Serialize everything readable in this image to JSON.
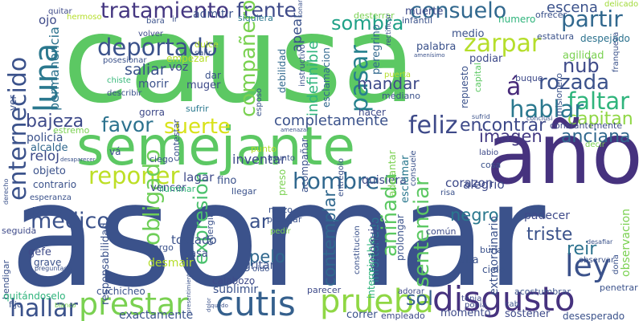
{
  "words": [
    {
      "text": "causa",
      "color": "#5cc863"
    },
    {
      "text": "asomar",
      "color": "#3b528b"
    },
    {
      "text": "semejante",
      "color": "#5cc863"
    },
    {
      "text": "año",
      "color": "#46327e"
    },
    {
      "text": "prestar",
      "color": "#7ad151"
    },
    {
      "text": "cutis",
      "color": "#35608d"
    },
    {
      "text": "prueba",
      "color": "#8fd744"
    },
    {
      "text": "disgusto",
      "color": "#46327e"
    },
    {
      "text": "enternecido",
      "color": "#3b528b"
    },
    {
      "text": "tratamiento",
      "color": "#453781"
    },
    {
      "text": "frente",
      "color": "#3e4a89"
    },
    {
      "text": "sombra",
      "color": "#1fa187"
    },
    {
      "text": "consuelo",
      "color": "#31688e"
    },
    {
      "text": "escena",
      "color": "#3b528b"
    },
    {
      "text": "partir",
      "color": "#31688e"
    },
    {
      "text": "deportado",
      "color": "#3b528b"
    },
    {
      "text": "zarpar",
      "color": "#b5de2b"
    },
    {
      "text": "luna",
      "color": "#2a788e"
    },
    {
      "text": "pasar",
      "color": "#26818e"
    },
    {
      "text": "compañero",
      "color": "#7ad151"
    },
    {
      "text": "rozada",
      "color": "#3b528b"
    },
    {
      "text": "faltar",
      "color": "#2fb47c"
    },
    {
      "text": "á",
      "color": "#472a7a"
    },
    {
      "text": "capitan",
      "color": "#8fd744"
    },
    {
      "text": "hablar",
      "color": "#2a788e"
    },
    {
      "text": "nub",
      "color": "#3e4a89"
    },
    {
      "text": "ley",
      "color": "#3b528b"
    },
    {
      "text": "anciana",
      "color": "#31688e"
    },
    {
      "text": "feliz",
      "color": "#3e4a89"
    },
    {
      "text": "encontrar",
      "color": "#3e4a89"
    },
    {
      "text": "imagen",
      "color": "#443983"
    },
    {
      "text": "favor",
      "color": "#2c728e"
    },
    {
      "text": "suerte",
      "color": "#d8e219"
    },
    {
      "text": "reponer",
      "color": "#bddf26"
    },
    {
      "text": "hombre",
      "color": "#31688e"
    },
    {
      "text": "ar",
      "color": "#3b528b"
    },
    {
      "text": "expresion",
      "color": "#4ac16d"
    },
    {
      "text": "obligado",
      "color": "#6ece58"
    },
    {
      "text": "hallar",
      "color": "#3b528b"
    },
    {
      "text": "sentenciar",
      "color": "#5cc863"
    },
    {
      "text": "contemplar",
      "color": "#31688e"
    },
    {
      "text": "negro",
      "color": "#2a788e"
    },
    {
      "text": "triste",
      "color": "#3b528b"
    },
    {
      "text": "reir",
      "color": "#2c728e"
    },
    {
      "text": "sol",
      "color": "#35608d"
    },
    {
      "text": "médico",
      "color": "#3b528b"
    },
    {
      "text": "pelo",
      "color": "#31688e"
    },
    {
      "text": "aniñada",
      "color": "#5cc863"
    },
    {
      "text": "mandar",
      "color": "#3e4a89"
    },
    {
      "text": "saliar",
      "color": "#3b528b"
    },
    {
      "text": "bajeza",
      "color": "#3e4a89"
    },
    {
      "text": "completamente",
      "color": "#3b528b"
    },
    {
      "text": "entenecido",
      "color": "#31688e"
    },
    {
      "text": "permanencia",
      "color": "#2c728e"
    },
    {
      "text": "indefinible",
      "color": "#2fb47c"
    },
    {
      "text": "apear",
      "color": "#3b528b"
    },
    {
      "text": "ojo",
      "color": "#3e4a89"
    },
    {
      "text": "quitar",
      "color": "#3e4a89"
    },
    {
      "text": "admitir",
      "color": "#3b528b"
    },
    {
      "text": "siquiera",
      "color": "#2a788e"
    },
    {
      "text": "infantil",
      "color": "#3b528b"
    },
    {
      "text": "muerte",
      "color": "#3e4a89"
    },
    {
      "text": "desterrar",
      "color": "#7ad151"
    },
    {
      "text": "delicado",
      "color": "#a0da39"
    },
    {
      "text": "ofrecer",
      "color": "#3b528b"
    },
    {
      "text": "numero",
      "color": "#2fb47c"
    },
    {
      "text": "despejado",
      "color": "#2c728e"
    },
    {
      "text": "estatura",
      "color": "#3b528b"
    },
    {
      "text": "agilidad",
      "color": "#7ad151"
    },
    {
      "text": "medio",
      "color": "#3b528b"
    },
    {
      "text": "palabra",
      "color": "#3b528b"
    },
    {
      "text": "podiar",
      "color": "#3e4a89"
    },
    {
      "text": "peregrino",
      "color": "#31688e"
    },
    {
      "text": "instructivo",
      "color": "#3b528b"
    },
    {
      "text": "esclamacion",
      "color": "#31688e"
    },
    {
      "text": "volver",
      "color": "#3e4a89"
    },
    {
      "text": "empezar",
      "color": "#b5de2b"
    },
    {
      "text": "salir",
      "color": "#3b528b"
    },
    {
      "text": "dulce",
      "color": "#b5de2b"
    },
    {
      "text": "voz",
      "color": "#3e4a89"
    },
    {
      "text": "posesionar",
      "color": "#3b528b"
    },
    {
      "text": "chiste",
      "color": "#35b779"
    },
    {
      "text": "morir",
      "color": "#3b528b"
    },
    {
      "text": "muger",
      "color": "#3e4a89"
    },
    {
      "text": "dar",
      "color": "#3b528b"
    },
    {
      "text": "debilidad",
      "color": "#31688e"
    },
    {
      "text": "repuesto",
      "color": "#3b528b"
    },
    {
      "text": "puerta",
      "color": "#b5de2b"
    },
    {
      "text": "mediano",
      "color": "#3b528b"
    },
    {
      "text": "capital",
      "color": "#5cc863"
    },
    {
      "text": "sufrir",
      "color": "#2a788e"
    },
    {
      "text": "hacer",
      "color": "#3e4a89"
    },
    {
      "text": "lagar",
      "color": "#3e4a89"
    },
    {
      "text": "fino",
      "color": "#3b528b"
    },
    {
      "text": "inventar",
      "color": "#3e4a89"
    },
    {
      "text": "quisiera",
      "color": "#3e4a89"
    },
    {
      "text": "corazon",
      "color": "#3e4a89"
    },
    {
      "text": "alegrio",
      "color": "#3e4a89"
    },
    {
      "text": "esclamar",
      "color": "#2a788e"
    },
    {
      "text": "infortunado",
      "color": "#2a788e"
    },
    {
      "text": "interminable",
      "color": "#2fb47c"
    },
    {
      "text": "extraordinario",
      "color": "#3b528b"
    },
    {
      "text": "padecer",
      "color": "#3e4a89"
    },
    {
      "text": "observacion",
      "color": "#7ad151"
    },
    {
      "text": "burla",
      "color": "#3b528b"
    },
    {
      "text": "alta",
      "color": "#3b528b"
    },
    {
      "text": "cielo",
      "color": "#3b528b"
    },
    {
      "text": "tenia",
      "color": "#3e4a89"
    },
    {
      "text": "ponia",
      "color": "#3e4a89"
    },
    {
      "text": "momento",
      "color": "#3e4a89"
    },
    {
      "text": "sostener",
      "color": "#3e4a89"
    },
    {
      "text": "desesperado",
      "color": "#3b528b"
    },
    {
      "text": "acostumbrar",
      "color": "#3b528b"
    },
    {
      "text": "exactamente",
      "color": "#3b528b"
    },
    {
      "text": "correr",
      "color": "#3b528b"
    },
    {
      "text": "empleado",
      "color": "#3e4a89"
    },
    {
      "text": "parecer",
      "color": "#3e4a89"
    },
    {
      "text": "adorar",
      "color": "#3e4a89"
    },
    {
      "text": "sublimir",
      "color": "#3b528b"
    },
    {
      "text": "gritar",
      "color": "#3b528b"
    },
    {
      "text": "calabozo",
      "color": "#3e4a89"
    },
    {
      "text": "cuchicheo",
      "color": "#3b528b"
    },
    {
      "text": "responsabilidad",
      "color": "#3b528b"
    },
    {
      "text": "gefe",
      "color": "#3e4a89"
    },
    {
      "text": "grave",
      "color": "#3b528b"
    },
    {
      "text": "bendigar",
      "color": "#3b528b"
    },
    {
      "text": "quitándoselo",
      "color": "#2fb47c"
    },
    {
      "text": "fijo",
      "color": "#3b528b"
    },
    {
      "text": "policía",
      "color": "#3b528b"
    },
    {
      "text": "alcalde",
      "color": "#31688e"
    },
    {
      "text": "reloj",
      "color": "#3e4a89"
    },
    {
      "text": "objeto",
      "color": "#3b528b"
    },
    {
      "text": "contrario",
      "color": "#3b528b"
    },
    {
      "text": "esperanza",
      "color": "#3b528b"
    },
    {
      "text": "jóven",
      "color": "#3b528b"
    },
    {
      "text": "seguida",
      "color": "#3e4a89"
    },
    {
      "text": "tostado",
      "color": "#3b528b"
    },
    {
      "text": "casa",
      "color": "#3b528b"
    },
    {
      "text": "cargo",
      "color": "#3b528b"
    },
    {
      "text": "desmair",
      "color": "#b5de2b"
    },
    {
      "text": "vencer",
      "color": "#3e4a89"
    },
    {
      "text": "iluminar",
      "color": "#35b779"
    },
    {
      "text": "llegar",
      "color": "#3b528b"
    },
    {
      "text": "mozo",
      "color": "#3b528b"
    },
    {
      "text": "protejar",
      "color": "#3b528b"
    },
    {
      "text": "energia",
      "color": "#3b528b"
    },
    {
      "text": "pedir",
      "color": "#7ad151"
    },
    {
      "text": "oido",
      "color": "#3b528b"
    },
    {
      "text": "coloquio",
      "color": "#3e4a89"
    },
    {
      "text": "constitucion",
      "color": "#3b528b"
    },
    {
      "text": "prolongar",
      "color": "#3b528b"
    },
    {
      "text": "común",
      "color": "#3e4a89"
    },
    {
      "text": "risa",
      "color": "#3b528b"
    },
    {
      "text": "adelantar",
      "color": "#7ad151"
    },
    {
      "text": "entregolo",
      "color": "#3b528b"
    },
    {
      "text": "consuele",
      "color": "#3b528b"
    },
    {
      "text": "labio",
      "color": "#3e4a89"
    },
    {
      "text": "cosa",
      "color": "#3b528b"
    },
    {
      "text": "constantemente",
      "color": "#3e4a89"
    },
    {
      "text": "contestar",
      "color": "#3b528b"
    },
    {
      "text": "punto",
      "color": "#b5de2b"
    },
    {
      "text": "asunto",
      "color": "#3b528b"
    },
    {
      "text": "estremo",
      "color": "#7ad151"
    },
    {
      "text": "ciego",
      "color": "#3b528b"
    },
    {
      "text": "gorra",
      "color": "#3e4a89"
    },
    {
      "text": "describir",
      "color": "#3b528b"
    },
    {
      "text": "ir",
      "color": "#3b528b"
    },
    {
      "text": "bara",
      "color": "#3b528b"
    },
    {
      "text": "hermoso",
      "color": "#b5de2b"
    },
    {
      "text": "franqueza",
      "color": "#3b528b"
    },
    {
      "text": "misionero",
      "color": "#3b528b"
    },
    {
      "text": "buque",
      "color": "#3e4a89"
    },
    {
      "text": "penetrar",
      "color": "#3b528b"
    },
    {
      "text": "observar",
      "color": "#3b528b"
    },
    {
      "text": "desafiar",
      "color": "#3b528b"
    },
    {
      "text": "dona",
      "color": "#3b528b"
    },
    {
      "text": "derecho",
      "color": "#3b528b"
    },
    {
      "text": "acompañar",
      "color": "#3b528b"
    },
    {
      "text": "preso",
      "color": "#7ad151"
    },
    {
      "text": "vá",
      "color": "#3b528b"
    },
    {
      "text": "ver",
      "color": "#3b528b"
    },
    {
      "text": "esposo",
      "color": "#3b528b"
    },
    {
      "text": "faccion",
      "color": "#5cc863"
    },
    {
      "text": "decir",
      "color": "#7ad151"
    },
    {
      "text": "cab",
      "color": "#3b528b"
    },
    {
      "text": "preguntado",
      "color": "#3b528b"
    },
    {
      "text": "conclusi",
      "color": "#3b528b"
    },
    {
      "text": "sufrid",
      "color": "#3b528b"
    },
    {
      "text": "amenísimo",
      "color": "#3b528b"
    },
    {
      "text": "rectificar",
      "color": "#3b528b"
    },
    {
      "text": "desaparecer",
      "color": "#3b528b"
    },
    {
      "text": "amenazar",
      "color": "#3b528b"
    },
    {
      "text": "presentimiento",
      "color": "#3b528b"
    },
    {
      "text": "quedo",
      "color": "#3b528b"
    },
    {
      "text": "dolor",
      "color": "#3b528b"
    },
    {
      "text": "blanco",
      "color": "#7ad151"
    },
    {
      "text": "sonar",
      "color": "#3b528b"
    }
  ]
}
